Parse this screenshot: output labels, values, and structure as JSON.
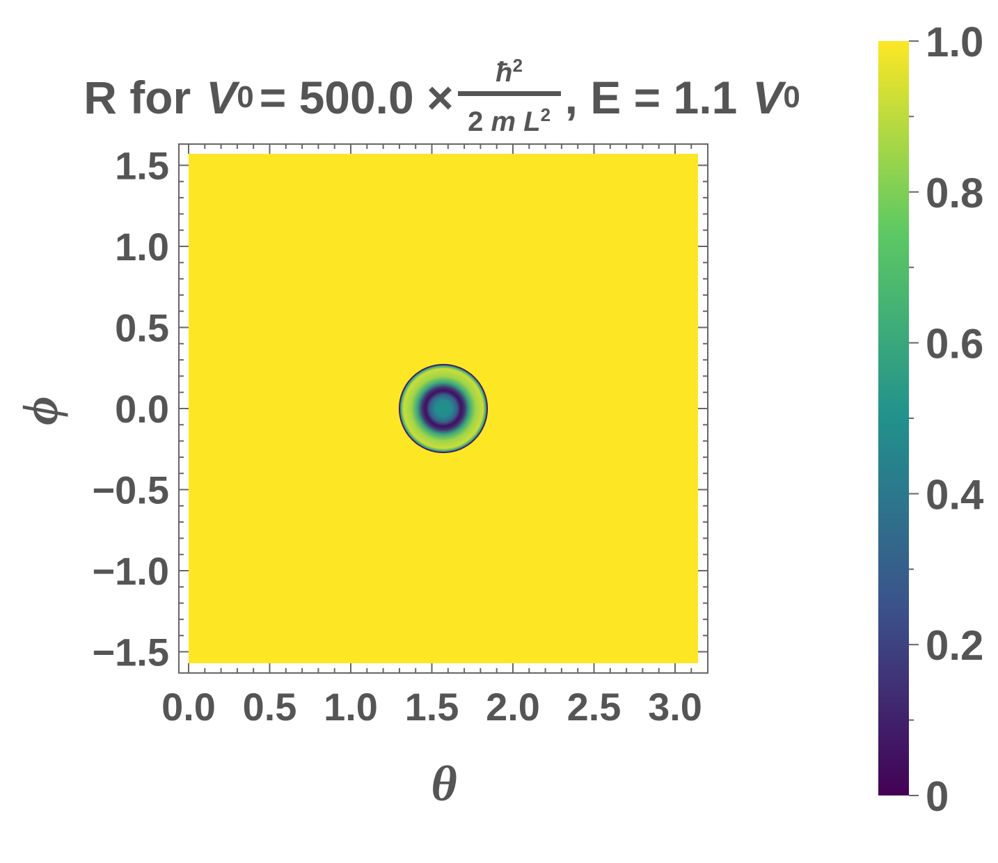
{
  "chart_data": {
    "type": "heatmap",
    "title": {
      "prefix": "R for",
      "v_symbol": "V",
      "v_subscript": "0",
      "equals_value": "= 500.0 ×",
      "frac_numerator": "ħ",
      "frac_numerator_sup": "2",
      "frac_denominator_2": "2",
      "frac_denominator_m": "m",
      "frac_denominator_L": "L",
      "frac_denominator_sup": "2",
      "energy": ", E = 1.1"
    },
    "xlabel": "θ",
    "ylabel": "ϕ",
    "xlim": [
      0,
      3.1416
    ],
    "ylim": [
      -1.5708,
      1.5708
    ],
    "x_ticks": [
      {
        "value": 0.0,
        "label": "0.0"
      },
      {
        "value": 0.5,
        "label": "0.5"
      },
      {
        "value": 1.0,
        "label": "1.0"
      },
      {
        "value": 1.5,
        "label": "1.5"
      },
      {
        "value": 2.0,
        "label": "2.0"
      },
      {
        "value": 2.5,
        "label": "2.5"
      },
      {
        "value": 3.0,
        "label": "3.0"
      }
    ],
    "y_ticks": [
      {
        "value": 1.5,
        "label": "1.5"
      },
      {
        "value": 1.0,
        "label": "1.0"
      },
      {
        "value": 0.5,
        "label": "0.5"
      },
      {
        "value": 0.0,
        "label": "0.0"
      },
      {
        "value": -0.5,
        "label": "−0.5"
      },
      {
        "value": -1.0,
        "label": "−1.0"
      },
      {
        "value": -1.5,
        "label": "−1.5"
      }
    ],
    "background_value": 1.0,
    "feature": {
      "center": [
        1.5708,
        0.0
      ],
      "outer_radius": 0.275,
      "radial_profile": [
        {
          "r": 0.0,
          "v": 0.5
        },
        {
          "r": 0.05,
          "v": 0.48
        },
        {
          "r": 0.085,
          "v": 0.3
        },
        {
          "r": 0.11,
          "v": 0.04
        },
        {
          "r": 0.13,
          "v": 0.15
        },
        {
          "r": 0.16,
          "v": 0.6
        },
        {
          "r": 0.2,
          "v": 0.85
        },
        {
          "r": 0.245,
          "v": 0.92
        },
        {
          "r": 0.263,
          "v": 0.6
        },
        {
          "r": 0.27,
          "v": 0.06
        },
        {
          "r": 0.275,
          "v": 0.06
        }
      ]
    },
    "colorbar": {
      "colormap": "viridis",
      "range": [
        0,
        1
      ],
      "ticks": [
        {
          "value": 1.0,
          "label": "1.0"
        },
        {
          "value": 0.8,
          "label": "0.8"
        },
        {
          "value": 0.6,
          "label": "0.6"
        },
        {
          "value": 0.4,
          "label": "0.4"
        },
        {
          "value": 0.2,
          "label": "0.2"
        },
        {
          "value": 0.0,
          "label": "0"
        }
      ],
      "minor_ticks": [
        0.1,
        0.3,
        0.5,
        0.7,
        0.9
      ]
    },
    "colors": {
      "text": "#555555",
      "frame": "#666666",
      "viridis": [
        "#440154",
        "#3b528b",
        "#21918c",
        "#5ec962",
        "#fde725"
      ]
    }
  }
}
